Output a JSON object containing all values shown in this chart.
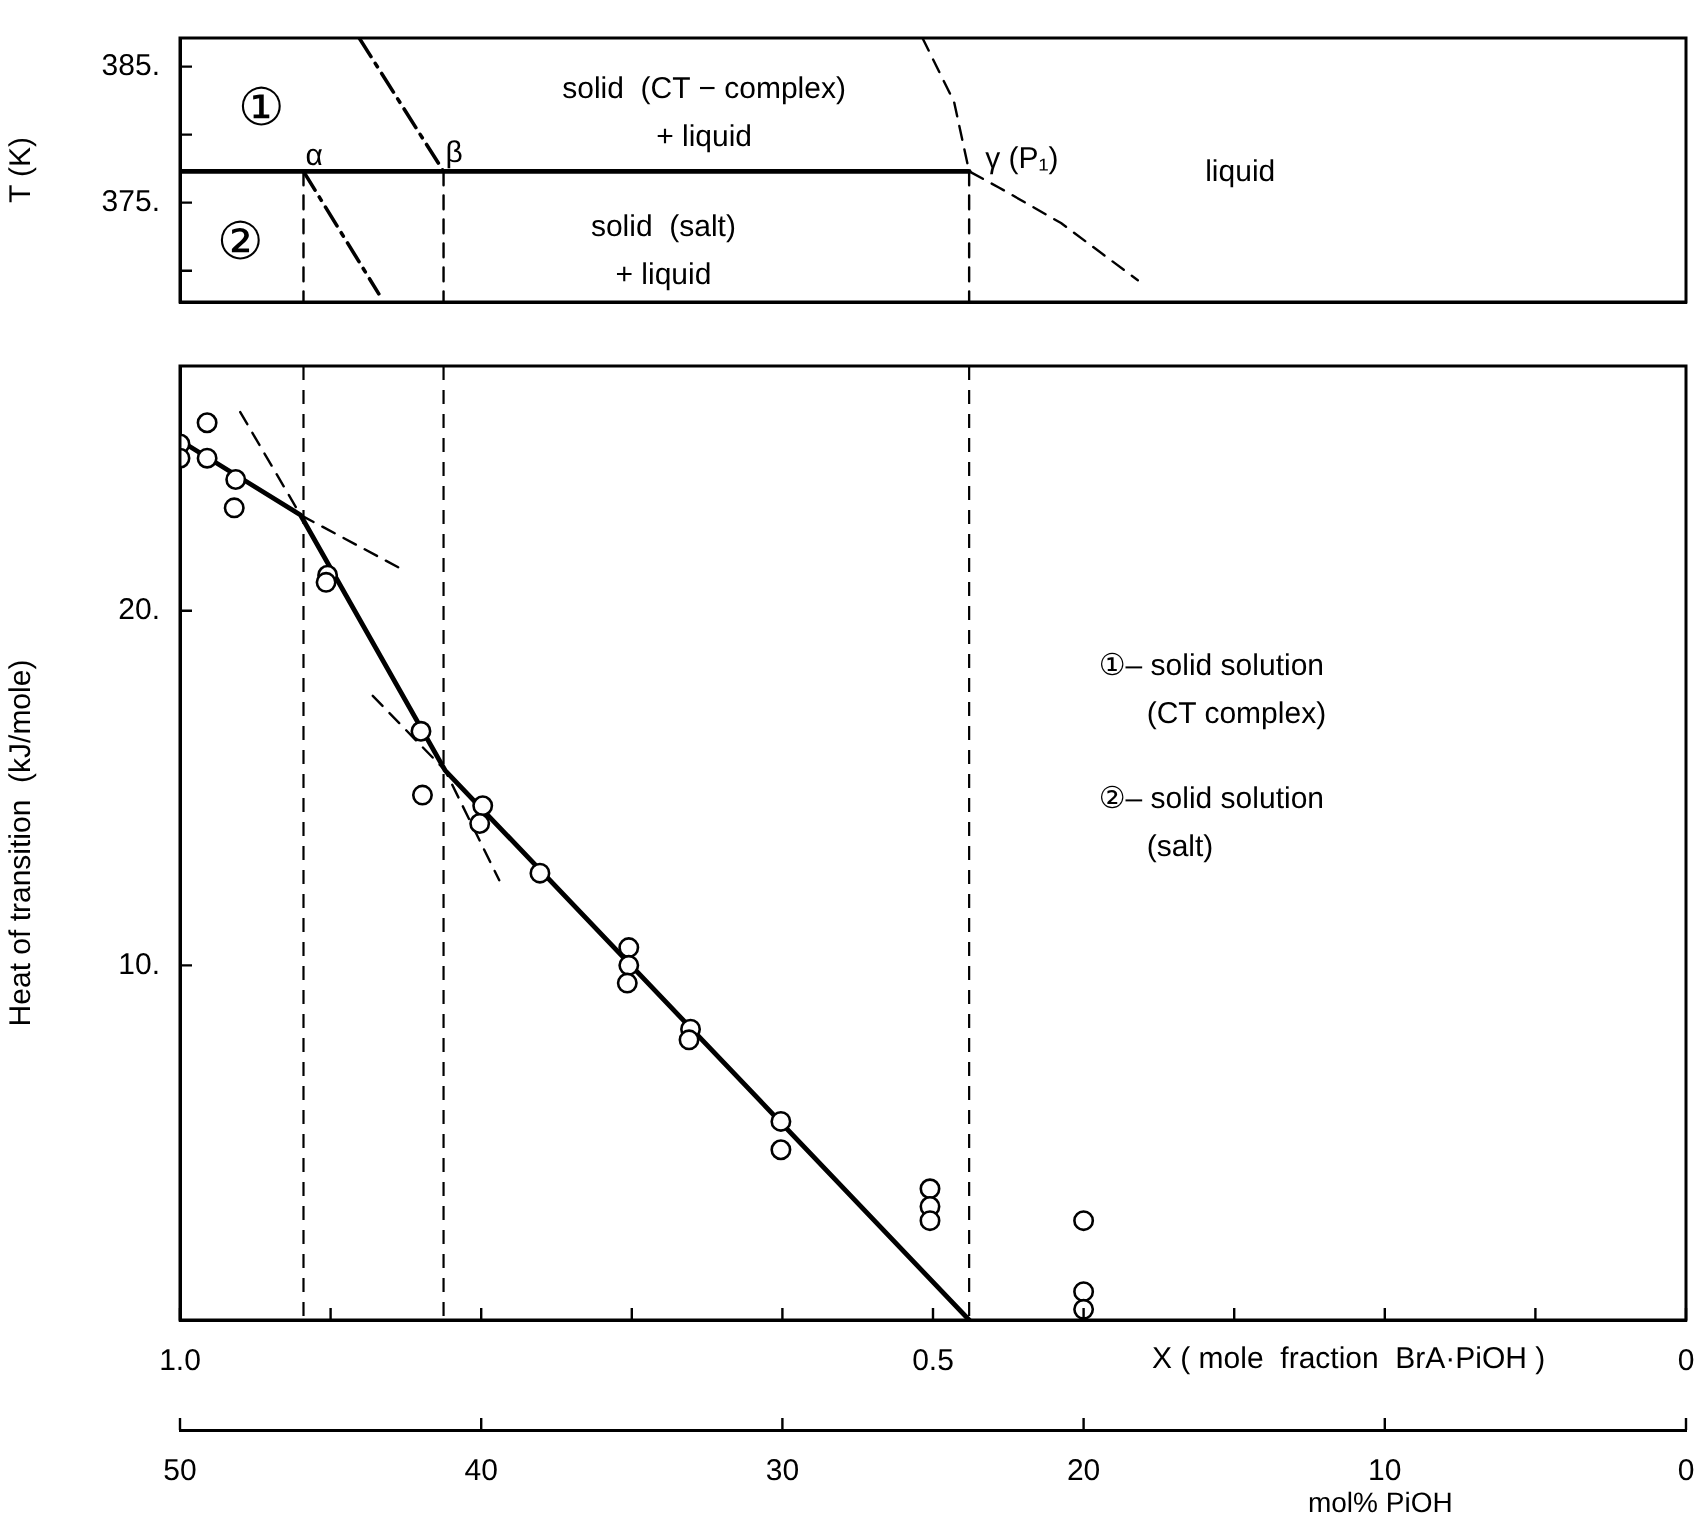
{
  "chart_data": [
    {
      "type": "line",
      "ylabel": "T (K)",
      "xlim": [
        1.0,
        0
      ],
      "ylim": [
        367.7,
        387.1
      ],
      "yticks": [
        {
          "value": 385,
          "label": "385."
        },
        {
          "value": 380,
          "label": null
        },
        {
          "value": 375,
          "label": "375."
        },
        {
          "value": 370,
          "label": null
        }
      ],
      "tick_labels": "y",
      "grid": false,
      "legend": false,
      "marker": "none",
      "series": [
        {
          "x": [
            1.0,
            0.476
          ],
          "values": [
            377.3,
            377.3
          ],
          "color": "#000000",
          "line_style": "solid"
        },
        {
          "x": [
            0.881,
            0.825
          ],
          "values": [
            387.1,
            377.3
          ],
          "color": "#000000",
          "line_style": "dashdot"
        },
        {
          "x": [
            0.918,
            0.868
          ],
          "values": [
            377.3,
            368.3
          ],
          "color": "#000000",
          "line_style": "dashdot"
        },
        {
          "x": [
            0.507,
            0.486,
            0.476,
            0.456,
            0.415,
            0.364
          ],
          "values": [
            387.1,
            382.4,
            377.3,
            376.1,
            373.5,
            369.3
          ],
          "color": "#000000",
          "line_style": "dashed"
        },
        {
          "x": [
            0.918,
            0.918
          ],
          "values": [
            377.3,
            367.7
          ],
          "color": "#000000",
          "line_style": "dashed"
        },
        {
          "x": [
            0.825,
            0.825
          ],
          "values": [
            377.3,
            367.7
          ],
          "color": "#000000",
          "line_style": "dashed"
        },
        {
          "x": [
            0.476,
            0.476
          ],
          "values": [
            377.3,
            367.7
          ],
          "color": "#000000",
          "line_style": "dashed"
        }
      ],
      "annotations": [
        "solid  (CT − complex)\n+ liquid",
        "liquid",
        "solid  (salt)\n+ liquid",
        "①",
        "②",
        "α",
        "β",
        "γ (P₁)"
      ]
    },
    {
      "type": "scatter",
      "xlabel": "X ( mole  fraction  BrA·PiOH )",
      "ylabel": "Heat of transition  (kJ/mole)",
      "x2label": "mol% PiOH",
      "xlim": [
        1.0,
        0
      ],
      "xticks": [
        {
          "value": 1.0,
          "label": "1.0"
        },
        {
          "value": 0.9,
          "label": null
        },
        {
          "value": 0.8,
          "label": null
        },
        {
          "value": 0.7,
          "label": null
        },
        {
          "value": 0.6,
          "label": null
        },
        {
          "value": 0.5,
          "label": "0.5"
        },
        {
          "value": 0.4,
          "label": null
        },
        {
          "value": 0.3,
          "label": null
        },
        {
          "value": 0.2,
          "label": null
        },
        {
          "value": 0.1,
          "label": null
        },
        0
      ],
      "ylim": [
        0,
        26.9
      ],
      "yticks": [
        {
          "value": 10,
          "label": "10."
        },
        {
          "value": 20,
          "label": "20."
        }
      ],
      "x2lim": [
        50,
        0
      ],
      "x2ticks": [
        50,
        40,
        30,
        20,
        10,
        0
      ],
      "grid": false,
      "legend": false,
      "ref_lines": [
        {
          "axis": "x",
          "value": 0.918,
          "color": "#000000",
          "line_style": "dashed"
        },
        {
          "axis": "x",
          "value": 0.825,
          "color": "#000000",
          "line_style": "dashed"
        },
        {
          "axis": "x",
          "value": 0.476,
          "color": "#000000",
          "line_style": "dashed"
        }
      ],
      "series": [
        {
          "type": "scatter",
          "marker": "circle",
          "color": "#000000",
          "x": [
            1.0,
            1.0,
            0.982,
            0.982,
            0.963,
            0.964,
            0.902,
            0.903,
            0.84,
            0.839,
            0.799,
            0.801,
            0.761,
            0.702,
            0.702,
            0.703,
            0.661,
            0.662,
            0.601,
            0.601,
            0.502,
            0.502,
            0.502,
            0.4,
            0.4,
            0.4
          ],
          "values": [
            24.7,
            24.3,
            25.3,
            24.3,
            23.7,
            22.9,
            21.0,
            20.8,
            16.6,
            14.8,
            14.5,
            14.0,
            12.6,
            10.5,
            10.0,
            9.5,
            8.2,
            7.9,
            5.6,
            4.8,
            3.7,
            3.2,
            2.8,
            2.8,
            0.8,
            0.3
          ]
        },
        {
          "type": "line",
          "marker": "none",
          "color": "#000000",
          "line_style": "solid",
          "x": [
            1.0,
            0.92,
            0.824,
            0.476
          ],
          "values": [
            24.8,
            22.7,
            15.5,
            0
          ]
        },
        {
          "type": "line",
          "marker": "none",
          "color": "#000000",
          "line_style": "dashed",
          "x": [
            0.96,
            0.92,
            0.854
          ],
          "values": [
            25.6,
            22.7,
            21.2
          ]
        },
        {
          "type": "line",
          "marker": "none",
          "color": "#000000",
          "line_style": "dashed",
          "x": [
            0.872,
            0.824,
            0.788
          ],
          "values": [
            17.6,
            15.5,
            12.4
          ]
        }
      ],
      "annotations": [
        "①– solid solution\n(CT complex)",
        "②– solid solution\n(salt)"
      ]
    }
  ]
}
